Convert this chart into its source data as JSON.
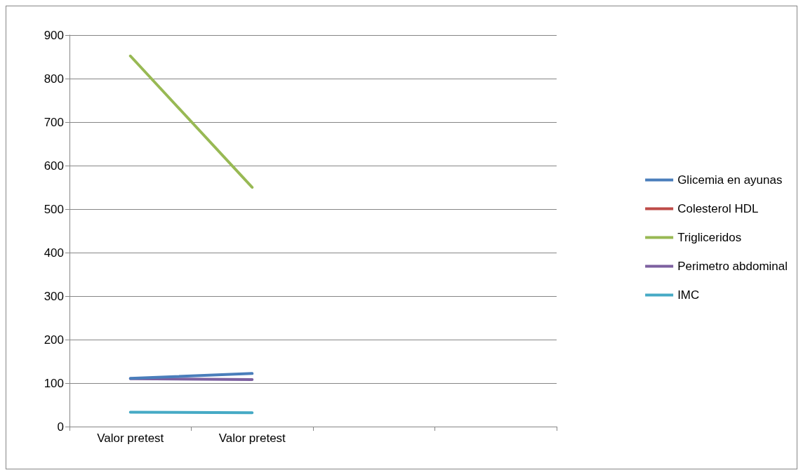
{
  "chart_data": {
    "type": "line",
    "categories": [
      "Valor pretest",
      "Valor pretest",
      null,
      null
    ],
    "series": [
      {
        "name": "Glicemia en ayunas",
        "color": "#4a7ebb",
        "values": [
          111,
          122,
          null,
          null
        ]
      },
      {
        "name": "Colesterol HDL",
        "color": "#be4b48",
        "values": [
          null,
          null,
          null,
          null
        ]
      },
      {
        "name": "Trigliceridos",
        "color": "#98b954",
        "values": [
          852,
          550,
          null,
          null
        ]
      },
      {
        "name": "Perimetro abdominal",
        "color": "#7d60a0",
        "values": [
          110,
          108,
          null,
          null
        ]
      },
      {
        "name": "IMC",
        "color": "#46aac5",
        "values": [
          33,
          32,
          null,
          null
        ]
      }
    ],
    "ylim": [
      0,
      900
    ],
    "yticks": [
      0,
      100,
      200,
      300,
      400,
      500,
      600,
      700,
      800,
      900
    ],
    "grid": "y",
    "legend": "right",
    "marker": "none",
    "line_style": "solid"
  }
}
